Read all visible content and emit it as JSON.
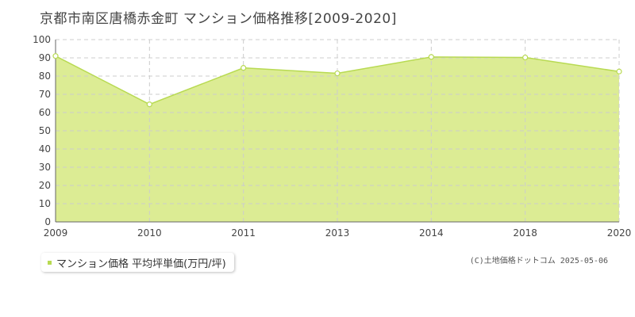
{
  "title": "京都市南区唐橋赤金町 マンション価格推移[2009-2020]",
  "legend": {
    "label": "マンション価格 平均坪単価(万円/坪)"
  },
  "footer": "(C)土地価格ドットコム 2025-05-06",
  "colors": {
    "fill": "#dcec94",
    "line": "#b8da52",
    "marker": "#b8da52",
    "grid": "#cccccc",
    "axis": "#666666",
    "text": "#444444"
  },
  "chart_data": {
    "type": "area",
    "categories": [
      "2009",
      "2010",
      "2011",
      "2013",
      "2014",
      "2018",
      "2020"
    ],
    "series": [
      {
        "name": "マンション価格 平均坪単価(万円/坪)",
        "values": [
          91,
          64.5,
          84.5,
          81.5,
          90.5,
          90.2,
          82.5
        ]
      }
    ],
    "ylim": [
      0,
      100
    ],
    "yticks": [
      0,
      10,
      20,
      30,
      40,
      50,
      60,
      70,
      80,
      90,
      100
    ],
    "grid": true,
    "legend_position": "bottom-left"
  }
}
